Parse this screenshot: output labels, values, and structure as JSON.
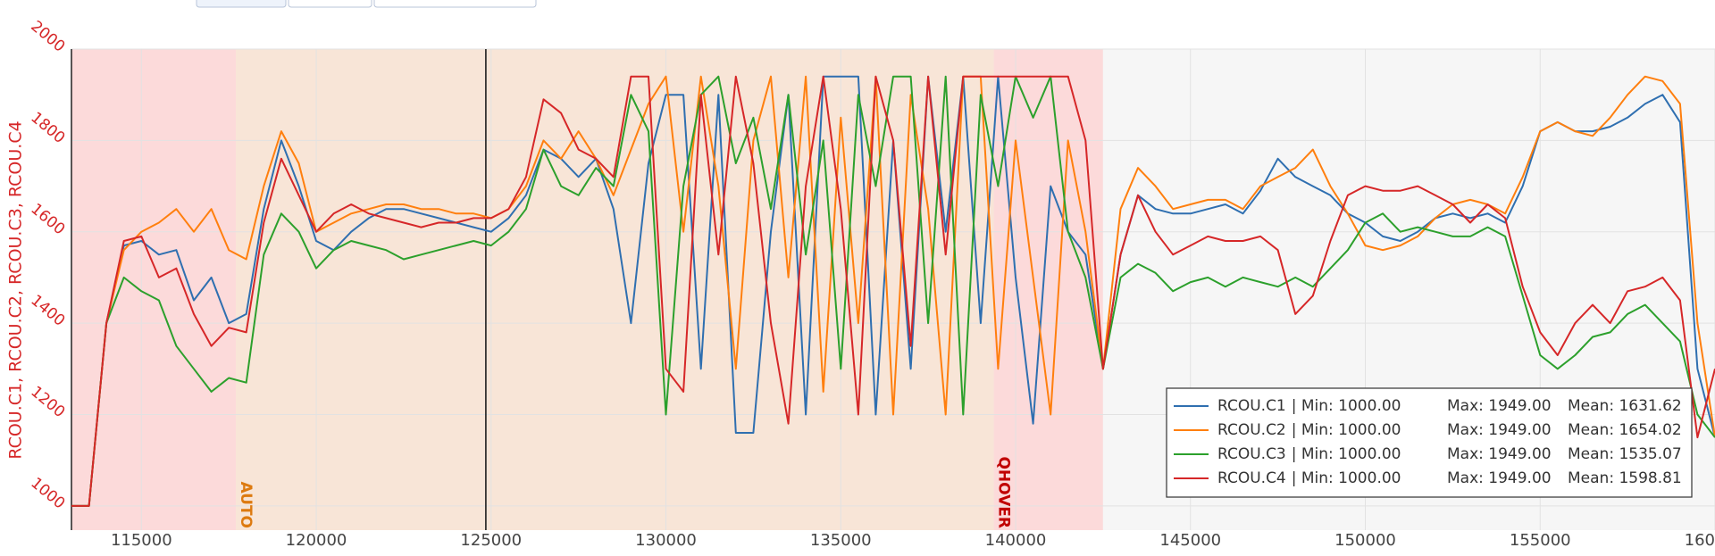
{
  "chart_data": {
    "type": "line",
    "y_label": "RCOU.C1, RCOU.C2, RCOU.C3, RCOU.C4",
    "x": [
      113000,
      113500,
      114000,
      114500,
      115000,
      115500,
      116000,
      116500,
      117000,
      117500,
      118000,
      118500,
      119000,
      119500,
      120000,
      120500,
      121000,
      121500,
      122000,
      122500,
      123000,
      123500,
      124000,
      124500,
      125000,
      125500,
      126000,
      126500,
      127000,
      127500,
      128000,
      128500,
      129000,
      129500,
      130000,
      130500,
      131000,
      131500,
      132000,
      132500,
      133000,
      133500,
      134000,
      134500,
      135000,
      135500,
      136000,
      136500,
      137000,
      137500,
      138000,
      138500,
      139000,
      139500,
      140000,
      140500,
      141000,
      141500,
      142000,
      142500,
      143000,
      143500,
      144000,
      144500,
      145000,
      145500,
      146000,
      146500,
      147000,
      147500,
      148000,
      148500,
      149000,
      149500,
      150000,
      150500,
      151000,
      151500,
      152000,
      152500,
      153000,
      153500,
      154000,
      154500,
      155000,
      155500,
      156000,
      156500,
      157000,
      157500,
      158000,
      158500,
      159000,
      159500,
      160000
    ],
    "series": [
      {
        "name": "RCOU.C1",
        "color": "#2f6fb0",
        "legend_stats": [
          "| Min: 1000.00",
          "Max: 1949.00",
          "Mean: 1631.62"
        ],
        "values": [
          1000,
          1000,
          1400,
          1570,
          1580,
          1550,
          1560,
          1450,
          1500,
          1400,
          1420,
          1650,
          1800,
          1700,
          1580,
          1560,
          1600,
          1630,
          1650,
          1650,
          1640,
          1630,
          1620,
          1610,
          1600,
          1630,
          1680,
          1780,
          1760,
          1720,
          1760,
          1650,
          1400,
          1750,
          1900,
          1900,
          1300,
          1900,
          1160,
          1160,
          1600,
          1900,
          1200,
          1940,
          1940,
          1940,
          1200,
          1800,
          1300,
          1940,
          1600,
          1940,
          1400,
          1940,
          1500,
          1180,
          1700,
          1600,
          1550,
          1300,
          1550,
          1680,
          1650,
          1640,
          1640,
          1650,
          1660,
          1640,
          1690,
          1760,
          1720,
          1700,
          1680,
          1640,
          1620,
          1590,
          1580,
          1600,
          1630,
          1640,
          1630,
          1640,
          1620,
          1700,
          1820,
          1840,
          1820,
          1820,
          1830,
          1850,
          1880,
          1900,
          1840,
          1300,
          1150
        ]
      },
      {
        "name": "RCOU.C2",
        "color": "#ff7f0e",
        "legend_stats": [
          "| Min: 1000.00",
          "Max: 1949.00",
          "Mean: 1654.02"
        ],
        "values": [
          1000,
          1000,
          1400,
          1560,
          1600,
          1620,
          1650,
          1600,
          1650,
          1560,
          1540,
          1700,
          1820,
          1750,
          1600,
          1620,
          1640,
          1650,
          1660,
          1660,
          1650,
          1650,
          1640,
          1640,
          1630,
          1650,
          1700,
          1800,
          1760,
          1820,
          1760,
          1680,
          1780,
          1880,
          1940,
          1600,
          1940,
          1700,
          1300,
          1800,
          1940,
          1500,
          1940,
          1250,
          1850,
          1400,
          1940,
          1200,
          1900,
          1650,
          1200,
          1940,
          1940,
          1300,
          1800,
          1500,
          1200,
          1800,
          1600,
          1300,
          1650,
          1740,
          1700,
          1650,
          1660,
          1670,
          1670,
          1650,
          1700,
          1720,
          1740,
          1780,
          1700,
          1640,
          1570,
          1560,
          1570,
          1590,
          1630,
          1660,
          1670,
          1660,
          1640,
          1720,
          1820,
          1840,
          1820,
          1810,
          1850,
          1900,
          1940,
          1930,
          1880,
          1400,
          1150
        ]
      },
      {
        "name": "RCOU.C3",
        "color": "#2ca02c",
        "legend_stats": [
          "| Min: 1000.00",
          "Max: 1949.00",
          "Mean: 1535.07"
        ],
        "values": [
          1000,
          1000,
          1400,
          1500,
          1470,
          1450,
          1350,
          1300,
          1250,
          1280,
          1270,
          1550,
          1640,
          1600,
          1520,
          1560,
          1580,
          1570,
          1560,
          1540,
          1550,
          1560,
          1570,
          1580,
          1570,
          1600,
          1650,
          1780,
          1700,
          1680,
          1740,
          1700,
          1900,
          1820,
          1200,
          1700,
          1900,
          1940,
          1750,
          1850,
          1650,
          1900,
          1550,
          1800,
          1300,
          1900,
          1700,
          1940,
          1940,
          1400,
          1940,
          1200,
          1900,
          1700,
          1940,
          1850,
          1940,
          1600,
          1500,
          1300,
          1500,
          1530,
          1510,
          1470,
          1490,
          1500,
          1480,
          1500,
          1490,
          1480,
          1500,
          1480,
          1520,
          1560,
          1620,
          1640,
          1600,
          1610,
          1600,
          1590,
          1590,
          1610,
          1590,
          1460,
          1330,
          1300,
          1330,
          1370,
          1380,
          1420,
          1440,
          1400,
          1360,
          1200,
          1150
        ]
      },
      {
        "name": "RCOU.C4",
        "color": "#d62728",
        "legend_stats": [
          "| Min: 1000.00",
          "Max: 1949.00",
          "Mean: 1598.81"
        ],
        "values": [
          1000,
          1000,
          1400,
          1580,
          1590,
          1500,
          1520,
          1420,
          1350,
          1390,
          1380,
          1620,
          1760,
          1680,
          1600,
          1640,
          1660,
          1640,
          1630,
          1620,
          1610,
          1620,
          1620,
          1630,
          1630,
          1650,
          1720,
          1890,
          1860,
          1780,
          1760,
          1720,
          1940,
          1940,
          1300,
          1250,
          1900,
          1550,
          1940,
          1750,
          1400,
          1180,
          1700,
          1940,
          1650,
          1200,
          1940,
          1800,
          1350,
          1940,
          1550,
          1940,
          1940,
          1940,
          1940,
          1940,
          1940,
          1940,
          1800,
          1300,
          1550,
          1680,
          1600,
          1550,
          1570,
          1590,
          1580,
          1580,
          1590,
          1560,
          1420,
          1460,
          1580,
          1680,
          1700,
          1690,
          1690,
          1700,
          1680,
          1660,
          1620,
          1660,
          1630,
          1480,
          1380,
          1330,
          1400,
          1440,
          1400,
          1470,
          1480,
          1500,
          1450,
          1150,
          1300
        ]
      }
    ],
    "regions": [
      {
        "start": 113000,
        "end": 117700,
        "color": "#fcdada"
      },
      {
        "start": 117700,
        "end": 139375,
        "color": "#f8e5d7",
        "label": "AUTO",
        "label_color": "#dd7a10"
      },
      {
        "start": 139375,
        "end": 142500,
        "color": "#fcdada",
        "label": "QHOVER",
        "label_color": "#c00000"
      },
      {
        "start": 142500,
        "end": 160000,
        "color": "#f6f6f6"
      }
    ],
    "cursor_x": 124850,
    "xlim": [
      113000,
      160000
    ],
    "xticks": [
      115000,
      120000,
      125000,
      130000,
      135000,
      140000,
      145000,
      150000,
      155000,
      160000
    ],
    "ylim": [
      947,
      2000
    ],
    "yticks": [
      1000,
      1200,
      1400,
      1600,
      1800,
      2000
    ],
    "grid": true
  }
}
